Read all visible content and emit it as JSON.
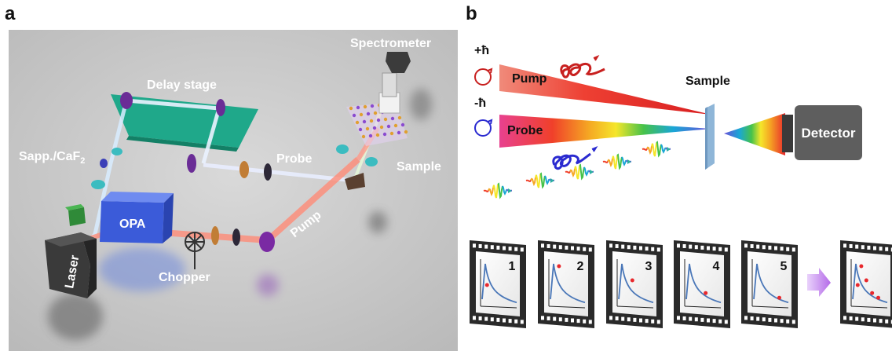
{
  "panel_a": {
    "letter": "a",
    "labels": {
      "spectrometer": "Spectrometer",
      "delay_stage": "Delay stage",
      "sapp_caf_prefix": "Sapp./CaF",
      "sapp_caf_sub": "2",
      "probe": "Probe",
      "sample": "Sample",
      "opa": "OPA",
      "pump": "Pump",
      "laser": "Laser",
      "chopper": "Chopper"
    }
  },
  "panel_b": {
    "letter": "b",
    "helicity_plus": "+ħ",
    "helicity_minus": "-ħ",
    "pump": "Pump",
    "probe": "Probe",
    "sample": "Sample",
    "detector": "Detector",
    "frames": [
      "1",
      "2",
      "3",
      "4",
      "5"
    ]
  },
  "colors": {
    "pump_red": "#e8282c",
    "delay_stage_teal": "#1fa88a",
    "opa_blue": "#3b5bd9",
    "arrow_purple": "#c98bf0"
  }
}
